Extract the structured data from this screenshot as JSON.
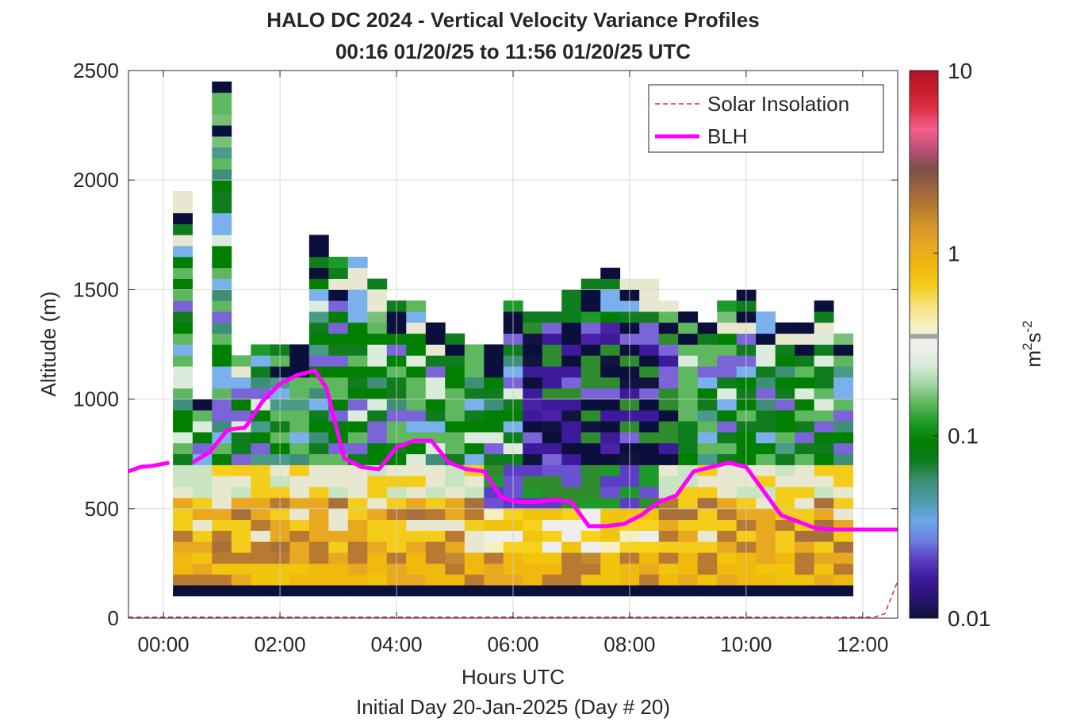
{
  "chart_data": {
    "type": "heatmap",
    "title": "HALO DC 2024 - Vertical Velocity Variance Profiles",
    "subtitle": "00:16 01/20/25 to 11:56 01/20/25  UTC",
    "xlabel": "Hours UTC",
    "xlabel2": "Initial Day 20-Jan-2025 (Day # 20)",
    "ylabel": "Altitude (m)",
    "xlim_hours": [
      -0.6,
      12.6
    ],
    "ylim": [
      0,
      2500
    ],
    "x_tick_values": [
      0,
      2,
      4,
      6,
      8,
      10,
      12
    ],
    "x_tick_labels": [
      "00:00",
      "02:00",
      "04:00",
      "06:00",
      "08:00",
      "10:00",
      "12:00"
    ],
    "y_ticks": [
      0,
      500,
      1000,
      1500,
      2000,
      2500
    ],
    "grid": true,
    "colorbar": {
      "scale": "log",
      "min": 0.01,
      "max": 10,
      "tick_values": [
        0.01,
        0.1,
        1,
        10
      ],
      "tick_labels": [
        "0.01",
        "0.1",
        "1",
        "10"
      ],
      "unit_base": "m",
      "unit_exp1": "2",
      "unit_mid": "s",
      "unit_exp2": "-2",
      "colors": [
        "#0b0f3c",
        "#2a1470",
        "#3d1a9a",
        "#5c3ec4",
        "#6d80e0",
        "#6aa8e8",
        "#4e9aa8",
        "#3f8f78",
        "#0f7c1e",
        "#007f00",
        "#1e9a2a",
        "#5fb85f",
        "#a6d6a6",
        "#dcecdc",
        "#eeeeee",
        "#f5f0c0",
        "#f7e27a",
        "#f4cc1a",
        "#f1b80e",
        "#e8a820",
        "#d6982a",
        "#b87a30",
        "#9a6440",
        "#7a5048",
        "#c0507a",
        "#f26089",
        "#e03048",
        "#c81e2a",
        "#b01428"
      ],
      "marker_value": 0.35
    },
    "legend": {
      "position": "top-right",
      "entries": [
        {
          "label": "Solar Insolation",
          "style": "dashed",
          "color": "#e8262a"
        },
        {
          "label": "BLH",
          "style": "solid",
          "color": "#ff00ff"
        }
      ]
    },
    "column_centers_hours": [
      0.33,
      0.667,
      1.0,
      1.333,
      1.667,
      2.0,
      2.333,
      2.667,
      3.0,
      3.333,
      3.667,
      4.0,
      4.333,
      4.667,
      5.0,
      5.333,
      5.667,
      6.0,
      6.333,
      6.667,
      7.0,
      7.333,
      7.667,
      8.0,
      8.333,
      8.667,
      9.0,
      9.333,
      9.667,
      10.0,
      10.333,
      10.667,
      11.0,
      11.333,
      11.667
    ],
    "altitude_bin_m": 50,
    "profile_tops_m": [
      1950,
      1000,
      2450,
      1200,
      1250,
      1250,
      1250,
      1750,
      1650,
      1650,
      1550,
      1450,
      1450,
      1350,
      1300,
      1250,
      1250,
      1450,
      1400,
      1400,
      1500,
      1550,
      1600,
      1550,
      1550,
      1450,
      1400,
      1350,
      1450,
      1500,
      1400,
      1350,
      1350,
      1450,
      1300
    ],
    "noise_floor_m": [
      100,
      150
    ],
    "blh": {
      "x_hours": [
        -0.6,
        -0.4,
        -0.2,
        0.1,
        0.5,
        0.8,
        1.1,
        1.4,
        1.7,
        2.0,
        2.3,
        2.6,
        2.8,
        3.1,
        3.4,
        3.7,
        4.0,
        4.3,
        4.6,
        4.9,
        5.2,
        5.5,
        5.8,
        6.1,
        6.4,
        6.7,
        7.0,
        7.3,
        7.6,
        7.9,
        8.2,
        8.5,
        8.8,
        9.1,
        9.4,
        9.7,
        10.0,
        10.3,
        10.6,
        10.9,
        11.2,
        11.5,
        11.8,
        12.1,
        12.4,
        12.6
      ],
      "y_m": [
        670,
        690,
        695,
        710,
        710,
        760,
        860,
        870,
        990,
        1070,
        1110,
        1130,
        1050,
        730,
        690,
        680,
        780,
        810,
        810,
        710,
        680,
        670,
        550,
        530,
        530,
        540,
        530,
        420,
        420,
        430,
        470,
        530,
        560,
        670,
        690,
        710,
        690,
        580,
        470,
        440,
        410,
        405,
        405,
        405,
        405,
        405
      ]
    },
    "solar_insolation": {
      "x_hours": [
        -0.6,
        12.2,
        12.38,
        12.6
      ],
      "y_m": [
        5,
        5,
        20,
        170
      ]
    }
  }
}
